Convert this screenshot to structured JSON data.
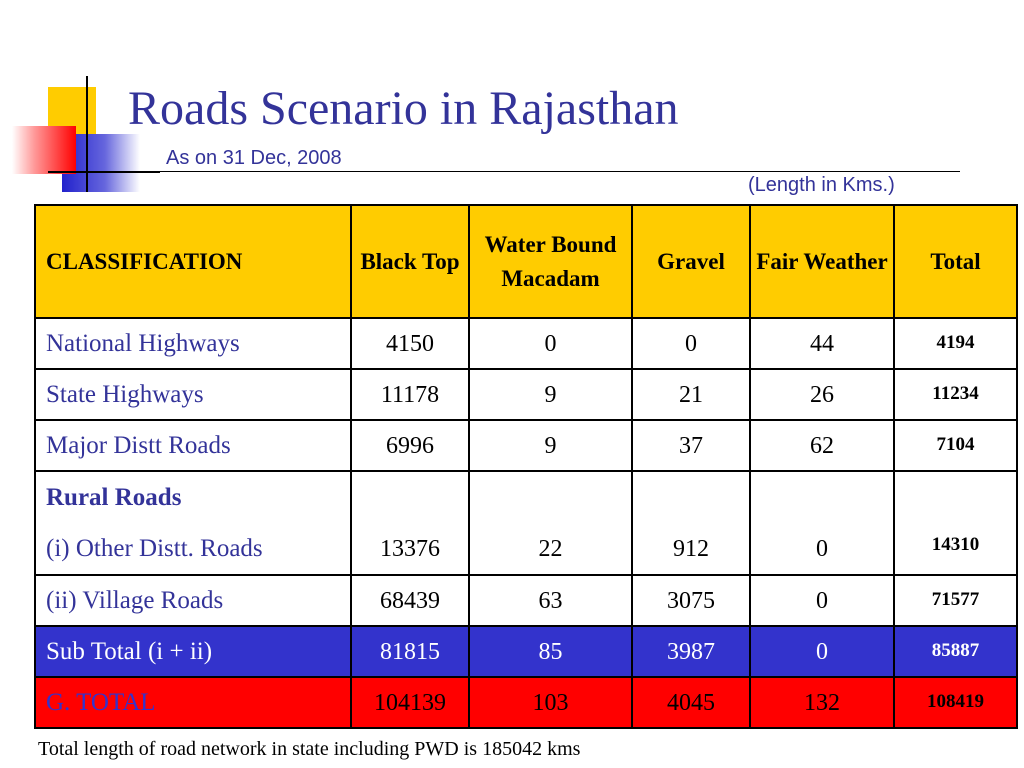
{
  "slide": {
    "title": "Roads Scenario in Rajasthan",
    "subtitle": "As on 31 Dec, 2008",
    "unit_note": "(Length in Kms.)",
    "footnote": "Total length of road network in state including PWD is 185042 kms"
  },
  "table": {
    "headers": {
      "classification": "CLASSIFICATION",
      "black_top": "Black Top",
      "wbm": "Water Bound Macadam",
      "gravel": "Gravel",
      "fair_weather": "Fair Weather",
      "total": "Total"
    },
    "rows": [
      {
        "name": "National Highways",
        "black_top": "4150",
        "wbm": "0",
        "gravel": "0",
        "fair_weather": "44",
        "total": "4194"
      },
      {
        "name": "State Highways",
        "black_top": "11178",
        "wbm": "9",
        "gravel": "21",
        "fair_weather": "26",
        "total": "11234"
      },
      {
        "name": "Major Distt Roads",
        "black_top": "6996",
        "wbm": "9",
        "gravel": "37",
        "fair_weather": "62",
        "total": "7104"
      }
    ],
    "rural": {
      "heading": "Rural Roads",
      "other_distt": {
        "name": "(i) Other Distt. Roads",
        "black_top": "13376",
        "wbm": "22",
        "gravel": "912",
        "fair_weather": "0",
        "total": "14310"
      },
      "village": {
        "name": "(ii) Village Roads",
        "black_top": "68439",
        "wbm": "63",
        "gravel": "3075",
        "fair_weather": "0",
        "total": "71577"
      }
    },
    "sub_total": {
      "name": "Sub Total (i + ii)",
      "black_top": "81815",
      "wbm": "85",
      "gravel": "3987",
      "fair_weather": "0",
      "total": "85887"
    },
    "grand_total": {
      "name": "G. TOTAL",
      "black_top": "104139",
      "wbm": "103",
      "gravel": "4045",
      "fair_weather": "132",
      "total": "108419"
    }
  },
  "colors": {
    "header_bg": "#ffcc00",
    "title_text": "#333399",
    "subtotal_bg": "#3333cc",
    "grand_total_bg": "#ff0000"
  }
}
